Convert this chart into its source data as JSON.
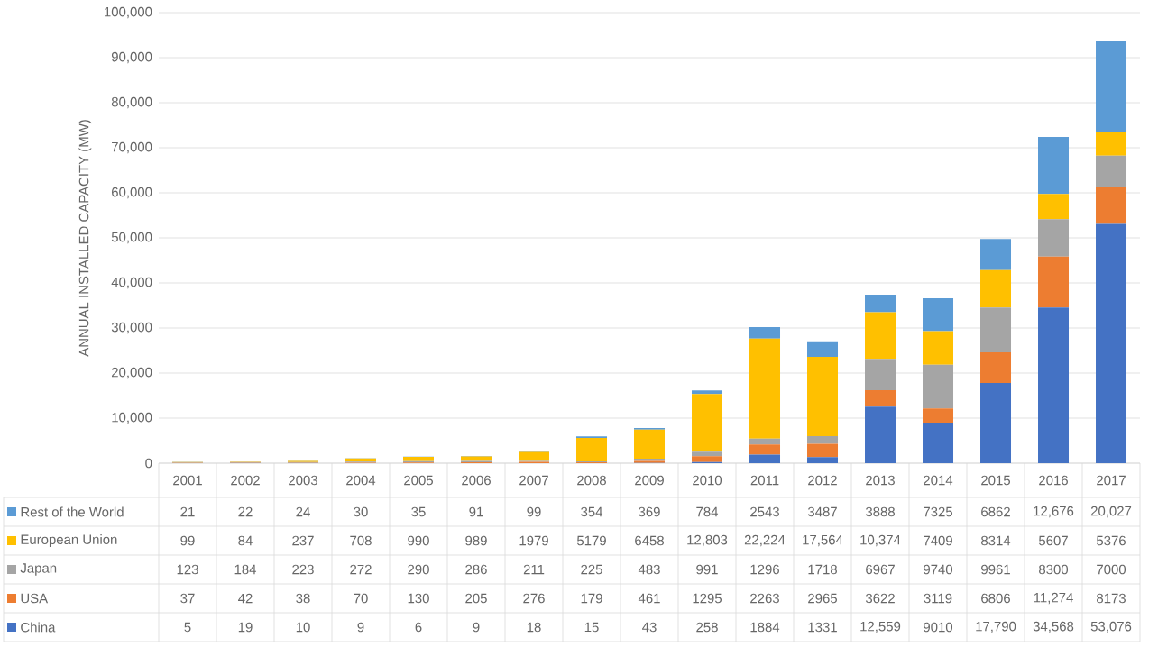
{
  "chart_data": {
    "type": "bar",
    "stacked": true,
    "ylabel": "ANNUAL INSTALLED CAPACITY (MW)",
    "categories": [
      "2001",
      "2002",
      "2003",
      "2004",
      "2005",
      "2006",
      "2007",
      "2008",
      "2009",
      "2010",
      "2011",
      "2012",
      "2013",
      "2014",
      "2015",
      "2016",
      "2017"
    ],
    "ylim": [
      0,
      100000
    ],
    "yticks": [
      {
        "value": 0,
        "label": "0"
      },
      {
        "value": 10000,
        "label": "10,000"
      },
      {
        "value": 20000,
        "label": "20,000"
      },
      {
        "value": 30000,
        "label": "30,000"
      },
      {
        "value": 40000,
        "label": "40,000"
      },
      {
        "value": 50000,
        "label": "50,000"
      },
      {
        "value": 60000,
        "label": "60,000"
      },
      {
        "value": 70000,
        "label": "70,000"
      },
      {
        "value": 80000,
        "label": "80,000"
      },
      {
        "value": 90000,
        "label": "90,000"
      },
      {
        "value": 100000,
        "label": "100,000"
      }
    ],
    "grid": "y",
    "legend": "bottom",
    "series": [
      {
        "name": "China",
        "color": "#4472c4",
        "values": [
          5,
          19,
          10,
          9,
          6,
          9,
          18,
          15,
          43,
          258,
          1884,
          1331,
          12559,
          9010,
          17790,
          34568,
          53076
        ],
        "value_labels": [
          "5",
          "19",
          "10",
          "9",
          "6",
          "9",
          "18",
          "15",
          "43",
          "258",
          "1884",
          "1331",
          "12,559",
          "9010",
          "17,790",
          "34,568",
          "53,076"
        ]
      },
      {
        "name": "USA",
        "color": "#ed7d31",
        "values": [
          37,
          42,
          38,
          70,
          130,
          205,
          276,
          179,
          461,
          1295,
          2263,
          2965,
          3622,
          3119,
          6806,
          11274,
          8173
        ],
        "value_labels": [
          "37",
          "42",
          "38",
          "70",
          "130",
          "205",
          "276",
          "179",
          "461",
          "1295",
          "2263",
          "2965",
          "3622",
          "3119",
          "6806",
          "11,274",
          "8173"
        ]
      },
      {
        "name": "Japan",
        "color": "#a5a5a5",
        "values": [
          123,
          184,
          223,
          272,
          290,
          286,
          211,
          225,
          483,
          991,
          1296,
          1718,
          6967,
          9740,
          9961,
          8300,
          7000
        ],
        "value_labels": [
          "123",
          "184",
          "223",
          "272",
          "290",
          "286",
          "211",
          "225",
          "483",
          "991",
          "1296",
          "1718",
          "6967",
          "9740",
          "9961",
          "8300",
          "7000"
        ]
      },
      {
        "name": "European Union",
        "color": "#ffc000",
        "values": [
          99,
          84,
          237,
          708,
          990,
          989,
          1979,
          5179,
          6458,
          12803,
          22224,
          17564,
          10374,
          7409,
          8314,
          5607,
          5376
        ],
        "value_labels": [
          "99",
          "84",
          "237",
          "708",
          "990",
          "989",
          "1979",
          "5179",
          "6458",
          "12,803",
          "22,224",
          "17,564",
          "10,374",
          "7409",
          "8314",
          "5607",
          "5376"
        ]
      },
      {
        "name": "Rest of the World",
        "color": "#5b9bd5",
        "values": [
          21,
          22,
          24,
          30,
          35,
          91,
          99,
          354,
          369,
          784,
          2543,
          3487,
          3888,
          7325,
          6862,
          12676,
          20027
        ],
        "value_labels": [
          "21",
          "22",
          "24",
          "30",
          "35",
          "91",
          "99",
          "354",
          "369",
          "784",
          "2543",
          "3487",
          "3888",
          "7325",
          "6862",
          "12,676",
          "20,027"
        ]
      }
    ]
  }
}
